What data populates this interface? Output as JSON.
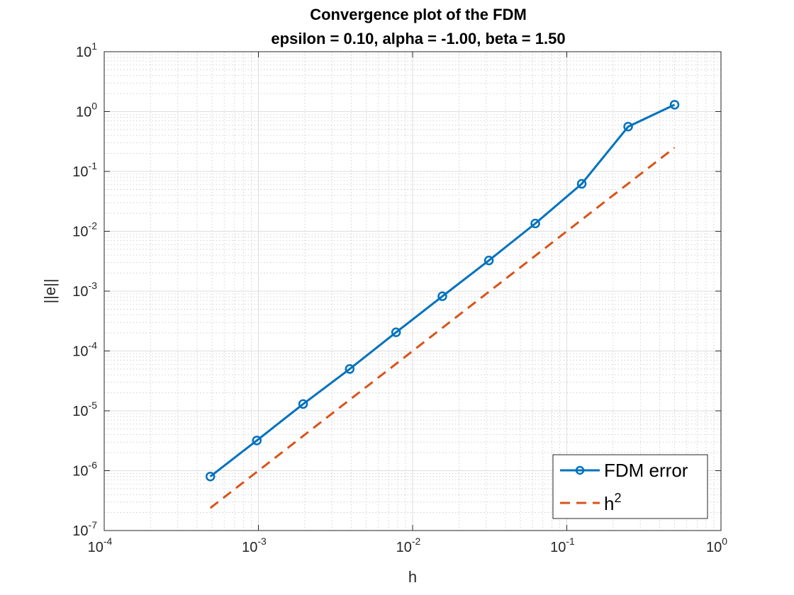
{
  "chart_data": {
    "type": "line",
    "title": "Convergence plot of the FDM",
    "subtitle": "epsilon = 0.10, alpha = -1.00, beta = 1.50",
    "xlabel": "h",
    "ylabel": "||e||",
    "xscale": "log",
    "yscale": "log",
    "xlim": [
      0.0001,
      1
    ],
    "ylim": [
      1e-07,
      10
    ],
    "grid": true,
    "minor_grid": true,
    "x_ticks": [
      {
        "base": "10",
        "exp": "-4",
        "value": 0.0001
      },
      {
        "base": "10",
        "exp": "-3",
        "value": 0.001
      },
      {
        "base": "10",
        "exp": "-2",
        "value": 0.01
      },
      {
        "base": "10",
        "exp": "-1",
        "value": 0.1
      },
      {
        "base": "10",
        "exp": "0",
        "value": 1
      }
    ],
    "y_ticks": [
      {
        "base": "10",
        "exp": "-7",
        "value": 1e-07
      },
      {
        "base": "10",
        "exp": "-6",
        "value": 1e-06
      },
      {
        "base": "10",
        "exp": "-5",
        "value": 1e-05
      },
      {
        "base": "10",
        "exp": "-4",
        "value": 0.0001
      },
      {
        "base": "10",
        "exp": "-3",
        "value": 0.001
      },
      {
        "base": "10",
        "exp": "-2",
        "value": 0.01
      },
      {
        "base": "10",
        "exp": "-1",
        "value": 0.1
      },
      {
        "base": "10",
        "exp": "0",
        "value": 1
      },
      {
        "base": "10",
        "exp": "1",
        "value": 10
      }
    ],
    "legend": {
      "position": "bottom-right"
    },
    "series": [
      {
        "name": "FDM error",
        "style": "solid-circle",
        "color": "#0072BD",
        "x": [
          0.000488,
          0.000977,
          0.00195,
          0.00391,
          0.00781,
          0.0156,
          0.03125,
          0.0625,
          0.125,
          0.25,
          0.5
        ],
        "y": [
          8e-07,
          3.2e-06,
          1.3e-05,
          5e-05,
          0.000205,
          0.00082,
          0.00325,
          0.0135,
          0.062,
          0.56,
          1.3
        ]
      },
      {
        "name": "h",
        "name_superscript": "2",
        "style": "dashed",
        "color": "#D95319",
        "x": [
          0.000488,
          0.5
        ],
        "y": [
          2.38e-07,
          0.25
        ]
      }
    ]
  }
}
